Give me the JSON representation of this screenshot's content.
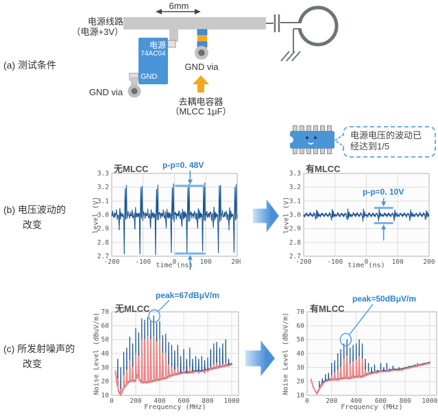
{
  "colors": {
    "ic_blue": "#4a94d8",
    "mlcc_blue": "#3f8fd6",
    "mlcc_orange": "#f5a623",
    "orange_arrow": "#f5a623",
    "trace_gray": "#c9c9c9",
    "symbol_gray": "#6e7476",
    "via_pad": "#bdbdbd",
    "via_hole": "#6e6e6e",
    "wave_blue": "#1a5693",
    "noise_red": "#ee8585",
    "annotation_blue": "#2b7fd0",
    "bar_blue": "#76b1e8",
    "arrow_blue": "#4a94d8",
    "grid": "#dcdcdc",
    "plot_border": "#b0b0b0",
    "tick_text": "#555555"
  },
  "section_a": {
    "label": "(a) 测试条件",
    "power_line_label_1": "电源线路",
    "power_line_label_2": "（电源+3V）",
    "dim_label": "6mm",
    "ic_power": "电源",
    "ic_name": "74AC04",
    "ic_gnd": "GND",
    "gnd_via_left": "GND via",
    "gnd_via_right": "GND via",
    "cap_label_1": "去耦电容器",
    "cap_label_2": "（MLCC 1μF）"
  },
  "mascot": {
    "bubble_line1": "电源电压的波动已",
    "bubble_line2": "经达到1/5"
  },
  "section_b": {
    "label_line1": "(b) 电压波动的",
    "label_line2": "改变"
  },
  "section_c": {
    "label_line1": "(c) 所发射噪声的",
    "label_line2": "改变"
  },
  "chart_data": [
    {
      "id": "voltage-no-mlcc",
      "type": "line",
      "title": "无MLCC",
      "xlabel": "time (ns)",
      "ylabel": "level (V)",
      "xlim": [
        -200,
        200
      ],
      "ylim": [
        2.7,
        3.3
      ],
      "xticks": [
        -200,
        -100,
        0,
        100,
        200
      ],
      "yticks": [
        2.7,
        2.8,
        2.9,
        3.0,
        3.1,
        3.2,
        3.3
      ],
      "grid": true,
      "series": [
        {
          "name": "supply-voltage",
          "periodic": {
            "period_ns": 50,
            "jitter": 0.018,
            "template": [
              [
                0,
                3.0
              ],
              [
                3,
                3.02
              ],
              [
                6,
                2.98
              ],
              [
                9,
                3.01
              ],
              [
                12,
                2.99
              ],
              [
                15,
                3.03
              ],
              [
                18,
                2.97
              ],
              [
                21,
                3.01
              ],
              [
                24,
                2.9
              ],
              [
                25,
                3.0
              ],
              [
                26,
                3.05
              ],
              [
                28,
                2.97
              ],
              [
                30,
                3.02
              ],
              [
                32,
                2.98
              ],
              [
                34,
                3.01
              ],
              [
                36,
                2.99
              ],
              [
                38,
                3.0
              ],
              [
                40,
                2.72
              ],
              [
                41,
                2.96
              ],
              [
                42,
                3.08
              ],
              [
                43,
                3.2
              ],
              [
                44,
                3.0
              ],
              [
                45,
                2.96
              ],
              [
                46,
                3.1
              ],
              [
                47,
                3.22
              ],
              [
                48,
                3.05
              ],
              [
                49,
                2.96
              ]
            ]
          }
        }
      ],
      "annotation": {
        "text": "p-p=0. 48V",
        "x_t": 50,
        "top_v": 3.21,
        "bottom_v": 2.72
      }
    },
    {
      "id": "voltage-with-mlcc",
      "type": "line",
      "title": "有MLCC",
      "xlabel": "time (ns)",
      "ylabel": "level (V)",
      "xlim": [
        -200,
        200
      ],
      "ylim": [
        2.7,
        3.3
      ],
      "xticks": [
        -200,
        -100,
        0,
        100,
        200
      ],
      "yticks": [
        2.7,
        2.8,
        2.9,
        3.0,
        3.1,
        3.2,
        3.3
      ],
      "grid": true,
      "series": [
        {
          "name": "supply-voltage",
          "periodic": {
            "period_ns": 50,
            "jitter": 0.01,
            "template": [
              [
                0,
                3.0
              ],
              [
                4,
                2.99
              ],
              [
                8,
                3.01
              ],
              [
                12,
                3.0
              ],
              [
                16,
                2.99
              ],
              [
                20,
                3.01
              ],
              [
                24,
                3.0
              ],
              [
                28,
                2.99
              ],
              [
                32,
                3.01
              ],
              [
                36,
                3.0
              ],
              [
                39,
                2.96
              ],
              [
                41,
                3.04
              ],
              [
                43,
                2.98
              ],
              [
                45,
                3.02
              ],
              [
                47,
                2.99
              ],
              [
                49,
                3.0
              ]
            ]
          }
        }
      ],
      "annotation": {
        "text": "p-p=0. 10V",
        "x_t": 55,
        "top_v": 3.05,
        "bottom_v": 2.94
      }
    },
    {
      "id": "noise-no-mlcc",
      "type": "line",
      "title": "无MLCC",
      "xlabel": "Frequency (MHz)",
      "ylabel": "Noise Level (dBuV/m)",
      "xlim": [
        0,
        1000
      ],
      "ylim": [
        10,
        70
      ],
      "xticks": [
        0,
        200,
        400,
        600,
        800,
        1000
      ],
      "yticks": [
        10,
        20,
        30,
        40,
        50,
        60,
        70
      ],
      "grid": true,
      "red_floor": [
        [
          30,
          28
        ],
        [
          45,
          17
        ],
        [
          60,
          12
        ],
        [
          75,
          10
        ],
        [
          100,
          15
        ],
        [
          130,
          18
        ],
        [
          150,
          20
        ],
        [
          200,
          20
        ],
        [
          210,
          24
        ],
        [
          230,
          21
        ],
        [
          250,
          19
        ],
        [
          300,
          19
        ],
        [
          350,
          20
        ],
        [
          400,
          21
        ],
        [
          450,
          22
        ],
        [
          500,
          24
        ],
        [
          550,
          25
        ],
        [
          600,
          26
        ],
        [
          650,
          26
        ],
        [
          700,
          27
        ],
        [
          750,
          27
        ],
        [
          800,
          28
        ],
        [
          850,
          29
        ],
        [
          900,
          30
        ],
        [
          950,
          31
        ],
        [
          1000,
          32
        ]
      ],
      "spikes": {
        "freqs": [
          50,
          75,
          100,
          125,
          150,
          175,
          200,
          225,
          250,
          275,
          300,
          325,
          350,
          375,
          400,
          425,
          450,
          475,
          500,
          525,
          550,
          575,
          600,
          625,
          650,
          675,
          700,
          725,
          750,
          775,
          800,
          825,
          850,
          875,
          900,
          925,
          950,
          975,
          1000
        ],
        "blue": [
          36,
          30,
          41,
          44,
          52,
          47,
          58,
          55,
          65,
          64,
          66,
          63,
          67,
          62,
          63,
          53,
          54,
          48,
          46,
          42,
          46,
          38,
          43,
          36,
          44,
          36,
          38,
          36,
          38,
          35,
          37,
          43,
          47,
          48,
          44,
          47,
          50,
          36,
          33
        ],
        "red": [
          22,
          14,
          24,
          28,
          35,
          30,
          40,
          38,
          50,
          50,
          52,
          50,
          52,
          48,
          50,
          40,
          40,
          32,
          30,
          28,
          30,
          26,
          28,
          26,
          30,
          26,
          27,
          26,
          27,
          26,
          27,
          30,
          32,
          33,
          31,
          32,
          33,
          31,
          32
        ]
      },
      "blue_from": 42,
      "annotation": {
        "text": "peak=67dBμV/m",
        "freq": 355,
        "level": 67
      }
    },
    {
      "id": "noise-with-mlcc",
      "type": "line",
      "title": "有MLCC",
      "xlabel": "Frequency (MHz)",
      "ylabel": "Noise Level (dBuV/m)",
      "xlim": [
        0,
        1000
      ],
      "ylim": [
        10,
        70
      ],
      "xticks": [
        0,
        200,
        400,
        600,
        800,
        1000
      ],
      "yticks": [
        10,
        20,
        30,
        40,
        50,
        60,
        70
      ],
      "grid": true,
      "red_floor": [
        [
          30,
          22
        ],
        [
          50,
          16
        ],
        [
          80,
          11
        ],
        [
          100,
          14
        ],
        [
          120,
          18
        ],
        [
          150,
          20
        ],
        [
          200,
          21
        ],
        [
          250,
          21
        ],
        [
          300,
          22
        ],
        [
          350,
          22
        ],
        [
          400,
          23
        ],
        [
          450,
          23
        ],
        [
          500,
          25
        ],
        [
          550,
          26
        ],
        [
          600,
          27
        ],
        [
          650,
          27
        ],
        [
          700,
          28
        ],
        [
          750,
          28
        ],
        [
          800,
          29
        ],
        [
          850,
          30
        ],
        [
          900,
          31
        ],
        [
          950,
          32
        ],
        [
          1000,
          33
        ]
      ],
      "spikes": {
        "freqs": [
          100,
          125,
          150,
          175,
          200,
          225,
          250,
          275,
          300,
          325,
          350,
          375,
          400,
          425,
          450,
          475,
          500,
          525,
          550,
          575,
          600,
          625,
          650,
          675,
          700,
          725,
          750,
          775,
          800,
          825,
          850,
          875,
          900,
          925,
          950,
          975,
          1000
        ],
        "blue": [
          20,
          22,
          25,
          26,
          33,
          35,
          40,
          43,
          47,
          50,
          44,
          46,
          47,
          50,
          47,
          36,
          33,
          30,
          32,
          28,
          33,
          30,
          33,
          29,
          31,
          29,
          30,
          29,
          30,
          31,
          31,
          32,
          33,
          32,
          33,
          33,
          34
        ],
        "red": [
          15,
          17,
          20,
          21,
          24,
          26,
          28,
          30,
          36,
          38,
          32,
          34,
          35,
          38,
          36,
          28,
          27,
          26,
          27,
          26,
          28,
          27,
          28,
          27,
          28,
          28,
          28,
          28,
          29,
          30,
          30,
          31,
          32,
          32,
          32,
          33,
          33
        ]
      },
      "blue_from": 70,
      "annotation": {
        "text": "peak=50dBμV/m",
        "freq": 315,
        "level": 50
      }
    }
  ]
}
